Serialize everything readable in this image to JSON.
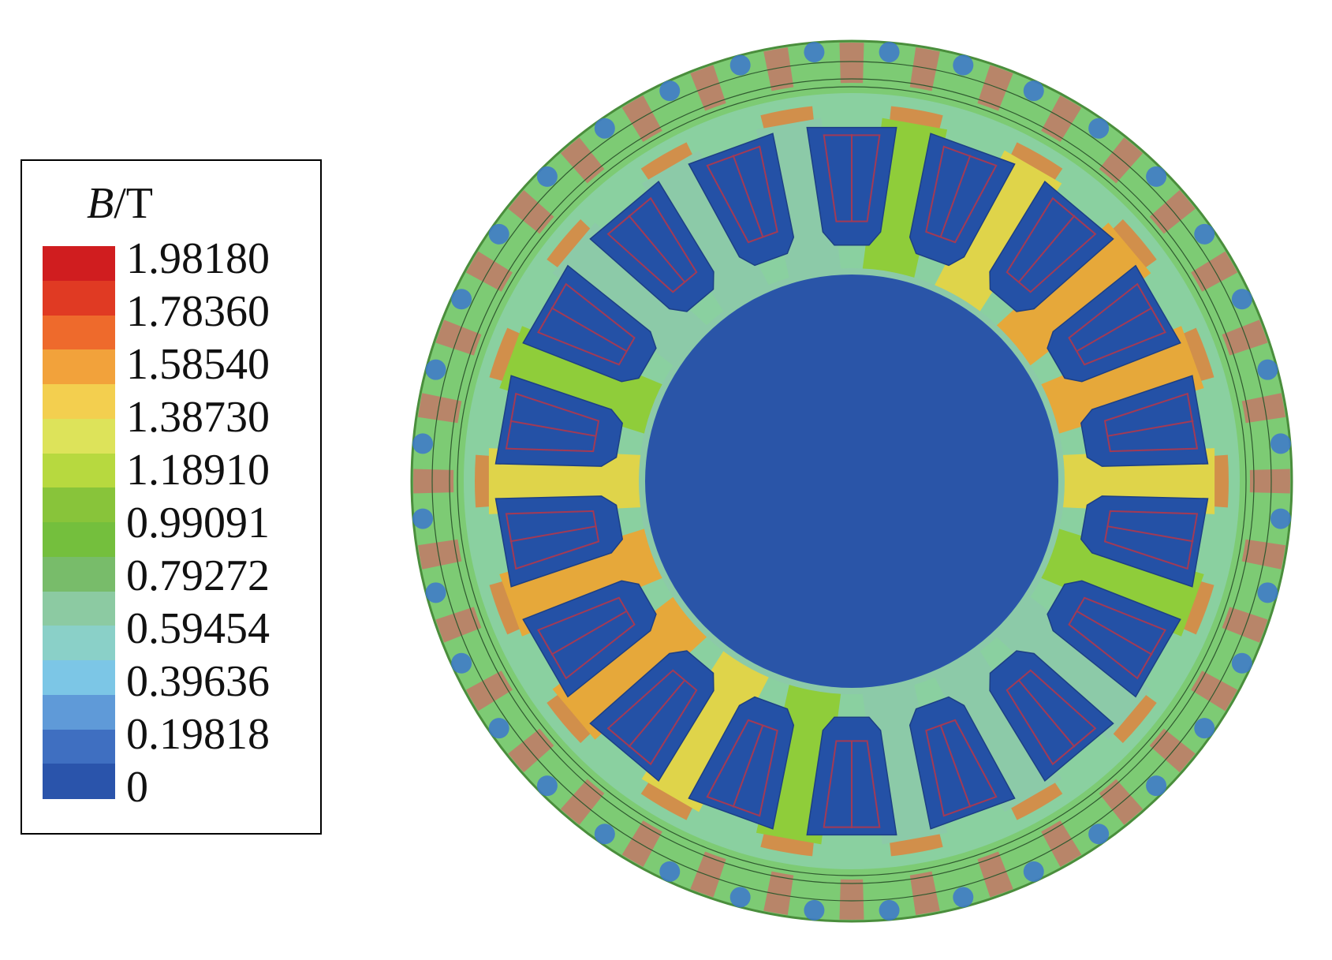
{
  "legend": {
    "title_symbol": "B",
    "title_unit": "/T",
    "labels": [
      "1.98180",
      "1.78360",
      "1.58540",
      "1.38730",
      "1.18910",
      "0.99091",
      "0.79272",
      "0.59454",
      "0.39636",
      "0.19818",
      "0"
    ],
    "colors": [
      "#d01d1f",
      "#e03a23",
      "#ee6a2c",
      "#f2a23b",
      "#f3cf4f",
      "#dde35a",
      "#b7d93f",
      "#88c43a",
      "#74bf3d",
      "#78bc6a",
      "#8ccaa2",
      "#8ad0c8",
      "#7cc6e6",
      "#5f9ad8",
      "#3f6fc1",
      "#2a54ab"
    ]
  },
  "motor": {
    "slot_count": 18,
    "pole_pairs": 1,
    "colors": {
      "outer_ring": "#7dcb74",
      "rim": "#4a8e3c",
      "bridge": "#b88569",
      "spot_blue": "#3c78cc",
      "yoke": "#8ad0a0",
      "tooth_green": "#8fcd3a",
      "tooth_yellow": "#dfd44a",
      "tooth_orange": "#e6a83a",
      "tooth_teal": "#8ccaa8",
      "edge_orange": "#e87a2f",
      "slot_blue": "#2451a6",
      "shaft_blue": "#2a55a8",
      "winding_line": "#a33a55",
      "thin_line": "#2f5a2f"
    }
  }
}
